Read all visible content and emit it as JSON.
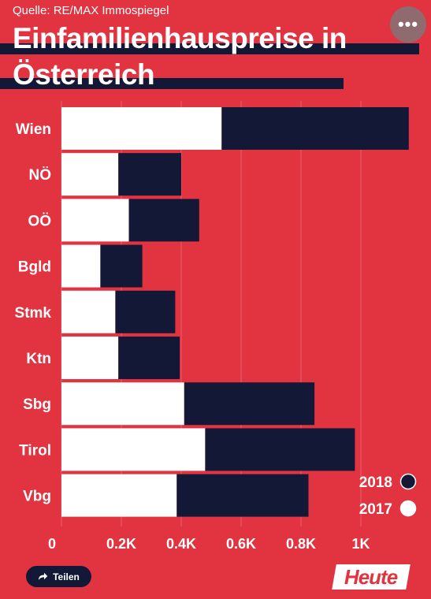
{
  "header": {
    "source": "Quelle: RE/MAX Immospiegel",
    "title_line1": "Einfamilienhauspreise in",
    "title_line2": "Österreich"
  },
  "menu": {
    "more_label": "•••"
  },
  "footer": {
    "share_label": "Teilen",
    "brand": "Heute"
  },
  "colors": {
    "background": "#e13340",
    "year_2018": "#131836",
    "year_2017": "#ffffff"
  },
  "chart_data": {
    "type": "bar",
    "orientation": "horizontal",
    "stacked": true,
    "categories": [
      "Wien",
      "NÖ",
      "OÖ",
      "Bgld",
      "Stmk",
      "Ktn",
      "Sbg",
      "Tirol",
      "Vbg"
    ],
    "series": [
      {
        "name": "2017",
        "color": "#ffffff",
        "values": [
          0.535,
          0.19,
          0.225,
          0.13,
          0.18,
          0.19,
          0.41,
          0.48,
          0.385
        ]
      },
      {
        "name": "2018",
        "color": "#131836",
        "values": [
          0.625,
          0.21,
          0.235,
          0.14,
          0.2,
          0.205,
          0.435,
          0.5,
          0.44
        ]
      }
    ],
    "xlim": [
      0,
      1.2
    ],
    "xticks": [
      0,
      0.2,
      0.4,
      0.6,
      0.8,
      1.0
    ],
    "xtick_labels": [
      "0",
      "0.2K",
      "0.4K",
      "0.6K",
      "0.8K",
      "1K"
    ],
    "grid": true,
    "legend_position": "bottom-right",
    "legend": [
      {
        "label": "2018",
        "color": "#131836"
      },
      {
        "label": "2017",
        "color": "#ffffff"
      }
    ]
  }
}
